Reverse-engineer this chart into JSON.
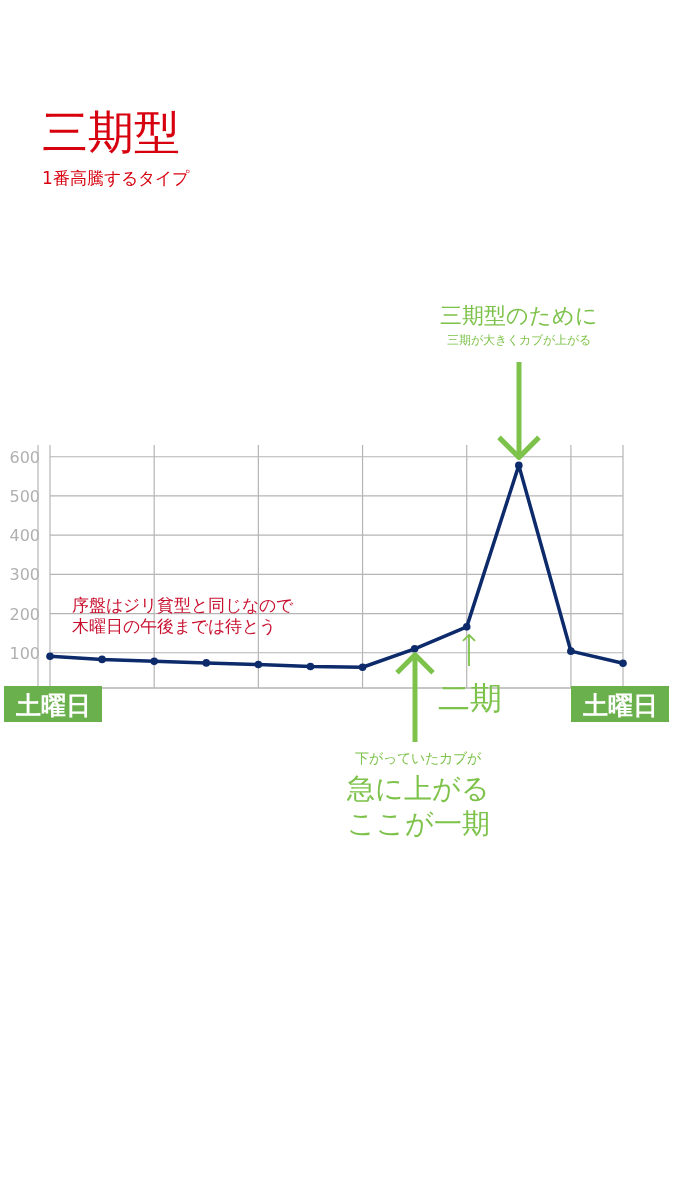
{
  "chart_data": {
    "type": "line",
    "title": "三期型",
    "subtitle": "1番高騰するタイプ",
    "categories": [
      null,
      null,
      null,
      null,
      null,
      null,
      null,
      null,
      null,
      null,
      null,
      null
    ],
    "series": [
      {
        "color": "#0d2a6b",
        "values": [
          91,
          83,
          78,
          74,
          70,
          65,
          63,
          110,
          166,
          578,
          104,
          73
        ]
      }
    ],
    "ylim": [
      10,
      630
    ],
    "yticks": [
      100,
      200,
      300,
      400,
      500,
      600
    ],
    "grid": true,
    "marker": "circle",
    "line_style": "solid",
    "annotations": [
      "序盤はジリ貧型と同じなので",
      "木曜日の午後までは待とう",
      "三期型のために",
      "三期が大きくカブが上がる",
      "下がっていたカブが",
      "急に上がる",
      "ここが一期",
      "二期",
      "土曜日",
      "土曜日"
    ]
  }
}
